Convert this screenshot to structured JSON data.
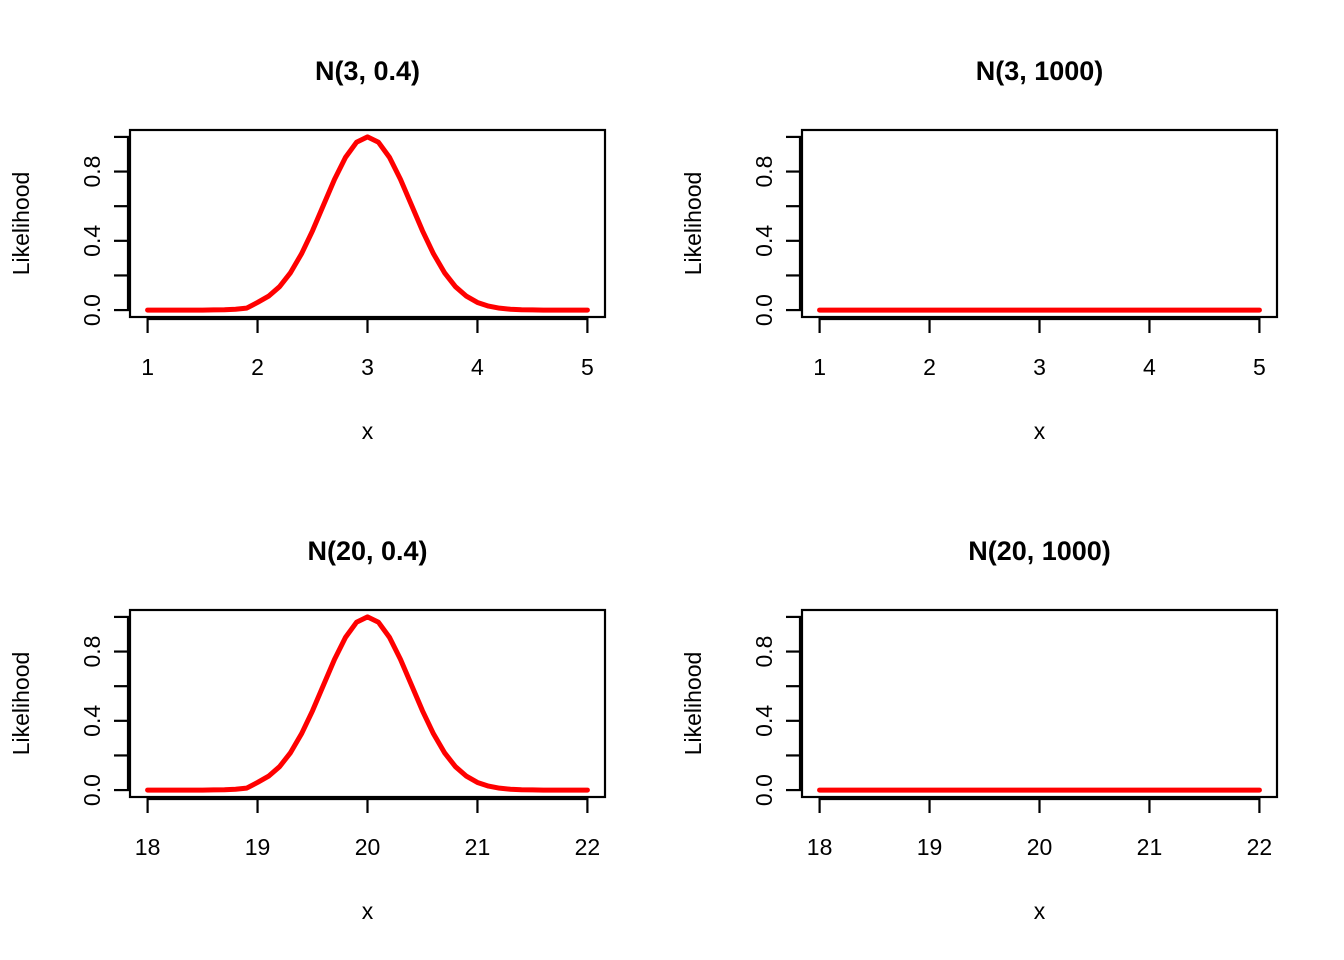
{
  "chart_data": [
    {
      "type": "line",
      "panel": "top-left",
      "title": "N(3, 0.4)",
      "xlabel": "x",
      "ylabel": "Likelihood",
      "xlim": [
        1,
        5
      ],
      "ylim": [
        0,
        1
      ],
      "x_ticks": [
        1,
        2,
        3,
        4,
        5
      ],
      "x_tick_labels": [
        "1",
        "2",
        "3",
        "4",
        "5"
      ],
      "y_ticks": [
        0,
        0.2,
        0.4,
        0.6,
        0.8,
        1.0
      ],
      "y_tick_labels": [
        "0.0",
        "",
        "0.4",
        "",
        "0.8",
        ""
      ],
      "grid": false,
      "series": [
        {
          "name": "likelihood",
          "color": "#ff0000",
          "x": [
            1.0,
            1.1,
            1.2,
            1.3,
            1.4,
            1.5,
            1.6,
            1.7,
            1.8,
            1.9,
            2.0,
            2.1,
            2.2,
            2.3,
            2.4,
            2.5,
            2.6,
            2.7,
            2.8,
            2.9,
            3.0,
            3.1,
            3.2,
            3.3,
            3.4,
            3.5,
            3.6,
            3.7,
            3.8,
            3.9,
            4.0,
            4.1,
            4.2,
            4.3,
            4.4,
            4.5,
            4.6,
            4.7,
            4.8,
            4.9,
            5.0
          ],
          "y": [
            0,
            0,
            0,
            0,
            0,
            0,
            0.001,
            0.002,
            0.005,
            0.011,
            0.044,
            0.08,
            0.135,
            0.216,
            0.325,
            0.458,
            0.607,
            0.755,
            0.882,
            0.969,
            1.0,
            0.969,
            0.882,
            0.755,
            0.607,
            0.458,
            0.325,
            0.216,
            0.135,
            0.08,
            0.044,
            0.023,
            0.011,
            0.005,
            0.002,
            0.001,
            0,
            0,
            0,
            0,
            0
          ]
        }
      ]
    },
    {
      "type": "line",
      "panel": "top-right",
      "title": "N(3, 1000)",
      "xlabel": "x",
      "ylabel": "Likelihood",
      "xlim": [
        1,
        5
      ],
      "ylim": [
        0,
        1
      ],
      "x_ticks": [
        1,
        2,
        3,
        4,
        5
      ],
      "x_tick_labels": [
        "1",
        "2",
        "3",
        "4",
        "5"
      ],
      "y_ticks": [
        0,
        0.2,
        0.4,
        0.6,
        0.8,
        1.0
      ],
      "y_tick_labels": [
        "0.0",
        "",
        "0.4",
        "",
        "0.8",
        ""
      ],
      "grid": false,
      "series": [
        {
          "name": "likelihood",
          "color": "#ff0000",
          "x": [
            1,
            2,
            3,
            4,
            5
          ],
          "y": [
            0,
            0,
            0,
            0,
            0
          ]
        }
      ]
    },
    {
      "type": "line",
      "panel": "bottom-left",
      "title": "N(20, 0.4)",
      "xlabel": "x",
      "ylabel": "Likelihood",
      "xlim": [
        18,
        22
      ],
      "ylim": [
        0,
        1
      ],
      "x_ticks": [
        18,
        19,
        20,
        21,
        22
      ],
      "x_tick_labels": [
        "18",
        "19",
        "20",
        "21",
        "22"
      ],
      "y_ticks": [
        0,
        0.2,
        0.4,
        0.6,
        0.8,
        1.0
      ],
      "y_tick_labels": [
        "0.0",
        "",
        "0.4",
        "",
        "0.8",
        ""
      ],
      "grid": false,
      "series": [
        {
          "name": "likelihood",
          "color": "#ff0000",
          "x": [
            18.0,
            18.1,
            18.2,
            18.3,
            18.4,
            18.5,
            18.6,
            18.7,
            18.8,
            18.9,
            19.0,
            19.1,
            19.2,
            19.3,
            19.4,
            19.5,
            19.6,
            19.7,
            19.8,
            19.9,
            20.0,
            20.1,
            20.2,
            20.3,
            20.4,
            20.5,
            20.6,
            20.7,
            20.8,
            20.9,
            21.0,
            21.1,
            21.2,
            21.3,
            21.4,
            21.5,
            21.6,
            21.7,
            21.8,
            21.9,
            22.0
          ],
          "y": [
            0,
            0,
            0,
            0,
            0,
            0,
            0.001,
            0.002,
            0.005,
            0.011,
            0.044,
            0.08,
            0.135,
            0.216,
            0.325,
            0.458,
            0.607,
            0.755,
            0.882,
            0.969,
            1.0,
            0.969,
            0.882,
            0.755,
            0.607,
            0.458,
            0.325,
            0.216,
            0.135,
            0.08,
            0.044,
            0.023,
            0.011,
            0.005,
            0.002,
            0.001,
            0,
            0,
            0,
            0,
            0
          ]
        }
      ]
    },
    {
      "type": "line",
      "panel": "bottom-right",
      "title": "N(20, 1000)",
      "xlabel": "x",
      "ylabel": "Likelihood",
      "xlim": [
        18,
        22
      ],
      "ylim": [
        0,
        1
      ],
      "x_ticks": [
        18,
        19,
        20,
        21,
        22
      ],
      "x_tick_labels": [
        "18",
        "19",
        "20",
        "21",
        "22"
      ],
      "y_ticks": [
        0,
        0.2,
        0.4,
        0.6,
        0.8,
        1.0
      ],
      "y_tick_labels": [
        "0.0",
        "",
        "0.4",
        "",
        "0.8",
        ""
      ],
      "grid": false,
      "series": [
        {
          "name": "likelihood",
          "color": "#ff0000",
          "x": [
            18,
            19,
            20,
            21,
            22
          ],
          "y": [
            0,
            0,
            0,
            0,
            0
          ]
        }
      ]
    }
  ]
}
